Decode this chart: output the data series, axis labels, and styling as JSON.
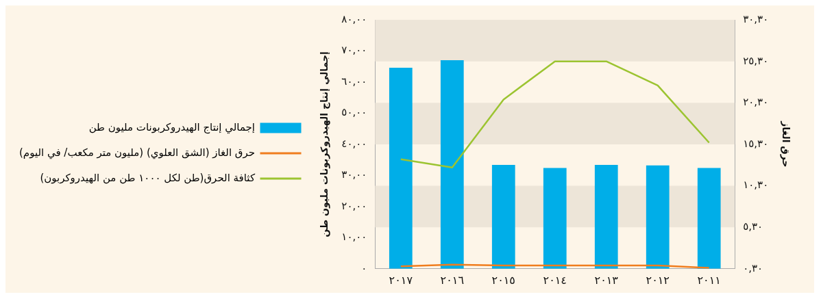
{
  "chart_data": {
    "type": "bar",
    "categories": [
      "٢٠١٧",
      "٢٠١٦",
      "٢٠١٥",
      "٢٠١٤",
      "٢٠١٣",
      "٢٠١٢",
      "٢٠١١"
    ],
    "ylabel": "إجمالي إنتاج الهيدروكربونات مليون طن",
    "y2label": "حرق الغاز",
    "ylim": [
      0,
      80
    ],
    "yticks": [
      {
        "value": 0,
        "label": "٠"
      },
      {
        "value": 10,
        "label": "١٠,٠٠"
      },
      {
        "value": 20,
        "label": "٢٠,٠٠"
      },
      {
        "value": 30,
        "label": "٣٠,٠٠"
      },
      {
        "value": 40,
        "label": "٤٠,٠٠"
      },
      {
        "value": 50,
        "label": "٥٠,٠٠"
      },
      {
        "value": 60,
        "label": "٦٠,٠٠"
      },
      {
        "value": 70,
        "label": "٧٠,٠٠"
      },
      {
        "value": 80,
        "label": "٨٠,٠٠"
      }
    ],
    "y2lim": [
      0.3,
      30.3
    ],
    "y2ticks": [
      {
        "value": 0.3,
        "label": "٠,٣٠"
      },
      {
        "value": 5.3,
        "label": "٥,٣٠"
      },
      {
        "value": 10.3,
        "label": "١٠,٣٠"
      },
      {
        "value": 15.3,
        "label": "١٥,٣٠"
      },
      {
        "value": 20.3,
        "label": "٢٠,٣٠"
      },
      {
        "value": 25.3,
        "label": "٢٥,٣٠"
      },
      {
        "value": 30.3,
        "label": "٣٠,٣٠"
      }
    ],
    "legend": "left",
    "grid": false,
    "marker": "none",
    "bands": [
      {
        "axis": "y2",
        "from": 5.3,
        "to": 10.3,
        "color": "#ede5d8"
      },
      {
        "axis": "y2",
        "from": 15.3,
        "to": 20.3,
        "color": "#ede5d8"
      },
      {
        "axis": "y2",
        "from": 25.3,
        "to": 30.3,
        "color": "#ede5d8"
      }
    ],
    "series": [
      {
        "name": "إجمالي إنتاج الهيدروكربونات مليون طن",
        "color": "#00aee8",
        "values": [
          64.6,
          67,
          33.4,
          32.4,
          33.4,
          33.2,
          32.4
        ]
      },
      {
        "name": "حرق الغاز (الشق العلوي) (مليون متر مكعب/ في اليوم)",
        "type": "line",
        "axis": "y2",
        "color": "#f07d1e",
        "values": [
          0.6,
          0.8,
          0.7,
          0.7,
          0.7,
          0.7,
          0.4
        ]
      },
      {
        "name": "كثافة الحرق(طن لكل ١٠٠٠ طن من الهيدروكربون)",
        "type": "line",
        "axis": "y2",
        "color": "#9cc431",
        "values": [
          13.5,
          12.5,
          20.7,
          25.3,
          25.3,
          22.4,
          15.5
        ]
      }
    ]
  }
}
